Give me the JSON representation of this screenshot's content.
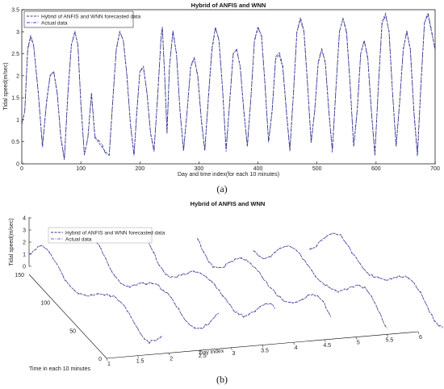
{
  "chart_data": [
    {
      "type": "line",
      "panel_label": "(a)",
      "title": "Hybrid of ANFIS and WNN",
      "xlabel": "Day and time index(for each 10 minutes)",
      "ylabel": "Tidal speed(m/sec)",
      "xlim": [
        0,
        700
      ],
      "ylim": [
        0,
        3.5
      ],
      "xticks": [
        0,
        100,
        200,
        300,
        400,
        500,
        600,
        700
      ],
      "yticks": [
        0,
        0.5,
        1,
        1.5,
        2,
        2.5,
        3,
        3.5
      ],
      "legend_position": "top-left",
      "series": [
        {
          "name": "Hybrid of ANFIS and WNN forecasted data",
          "color": "#3a3a7a",
          "style": "dashed"
        },
        {
          "name": "Actual data",
          "color": "#4040c8",
          "style": "dash-dot"
        }
      ],
      "x": [
        0,
        5,
        10,
        15,
        20,
        28,
        35,
        42,
        48,
        54,
        60,
        66,
        72,
        78,
        84,
        90,
        95,
        100,
        106,
        112,
        118,
        124,
        130,
        136,
        142,
        148,
        154,
        160,
        166,
        172,
        178,
        184,
        190,
        195,
        200,
        206,
        212,
        218,
        224,
        230,
        236,
        238,
        242,
        246,
        250,
        256,
        262,
        268,
        274,
        280,
        286,
        292,
        298,
        304,
        310,
        316,
        322,
        328,
        334,
        340,
        346,
        352,
        358,
        364,
        370,
        376,
        382,
        388,
        394,
        400,
        406,
        412,
        418,
        424,
        430,
        436,
        442,
        448,
        454,
        460,
        466,
        472,
        478,
        484,
        490,
        496,
        502,
        508,
        514,
        520,
        526,
        532,
        538,
        544,
        550,
        556,
        562,
        568,
        574,
        580,
        586,
        592,
        598,
        604,
        610,
        616,
        622,
        628,
        634,
        640,
        646,
        652,
        658,
        664,
        670,
        676,
        682,
        688,
        694,
        700
      ],
      "y": [
        0.9,
        1.2,
        2.6,
        2.9,
        2.7,
        1.6,
        0.4,
        1.4,
        2.0,
        2.1,
        1.6,
        0.6,
        0.1,
        1.6,
        2.7,
        3.0,
        2.7,
        1.4,
        0.2,
        0.6,
        1.6,
        0.6,
        0.5,
        0.4,
        0.25,
        0.2,
        1.4,
        2.6,
        3.0,
        2.8,
        2.0,
        0.9,
        0.2,
        1.2,
        2.1,
        2.2,
        1.6,
        0.7,
        0.3,
        1.5,
        2.9,
        3.1,
        2.0,
        0.7,
        2.2,
        3.0,
        2.5,
        1.2,
        0.3,
        1.2,
        2.2,
        2.4,
        2.0,
        1.0,
        0.3,
        1.5,
        2.6,
        3.1,
        2.8,
        1.7,
        0.3,
        1.4,
        2.5,
        2.6,
        2.2,
        1.2,
        0.4,
        1.5,
        2.8,
        3.1,
        2.9,
        1.8,
        0.5,
        1.2,
        2.4,
        2.5,
        2.2,
        1.2,
        0.3,
        1.6,
        3.0,
        3.3,
        3.0,
        1.8,
        0.5,
        1.2,
        2.3,
        2.6,
        2.3,
        1.2,
        0.3,
        1.7,
        3.0,
        3.3,
        3.0,
        1.8,
        0.4,
        1.2,
        2.5,
        2.8,
        2.4,
        1.2,
        0.2,
        1.8,
        3.2,
        3.4,
        3.0,
        1.6,
        0.4,
        1.4,
        2.6,
        3.0,
        2.6,
        1.2,
        0.2,
        1.8,
        3.2,
        3.4,
        3.0,
        2.6
      ]
    },
    {
      "type": "line3d",
      "panel_label": "(b)",
      "title": "Hybrid of ANFIS and WNN",
      "xlabel": "Day index",
      "ylabel": "Time in each 10 minutes",
      "zlabel": "Tidal speed(m/sec)",
      "xlim": [
        1,
        6
      ],
      "ylim": [
        0,
        150
      ],
      "zlim": [
        0,
        4
      ],
      "xticks": [
        "1",
        "1.5",
        "2",
        "2.5",
        "3",
        "3.5",
        "4",
        "4.5",
        "5",
        "5.5",
        "6"
      ],
      "yticks": [
        "0",
        "50",
        "100",
        "150"
      ],
      "zticks": [
        "0",
        "1",
        "2",
        "3",
        "4"
      ],
      "legend_position": "top-left",
      "series": [
        {
          "name": "Hybrid of ANFIS and WNN forecasted data",
          "color": "#3a3a7a",
          "style": "dashed"
        },
        {
          "name": "Actual data",
          "color": "#6a6ad8",
          "style": "dash-dot"
        }
      ]
    }
  ],
  "panels": {
    "a": {
      "label": "(a)"
    },
    "b": {
      "label": "(b)"
    }
  }
}
